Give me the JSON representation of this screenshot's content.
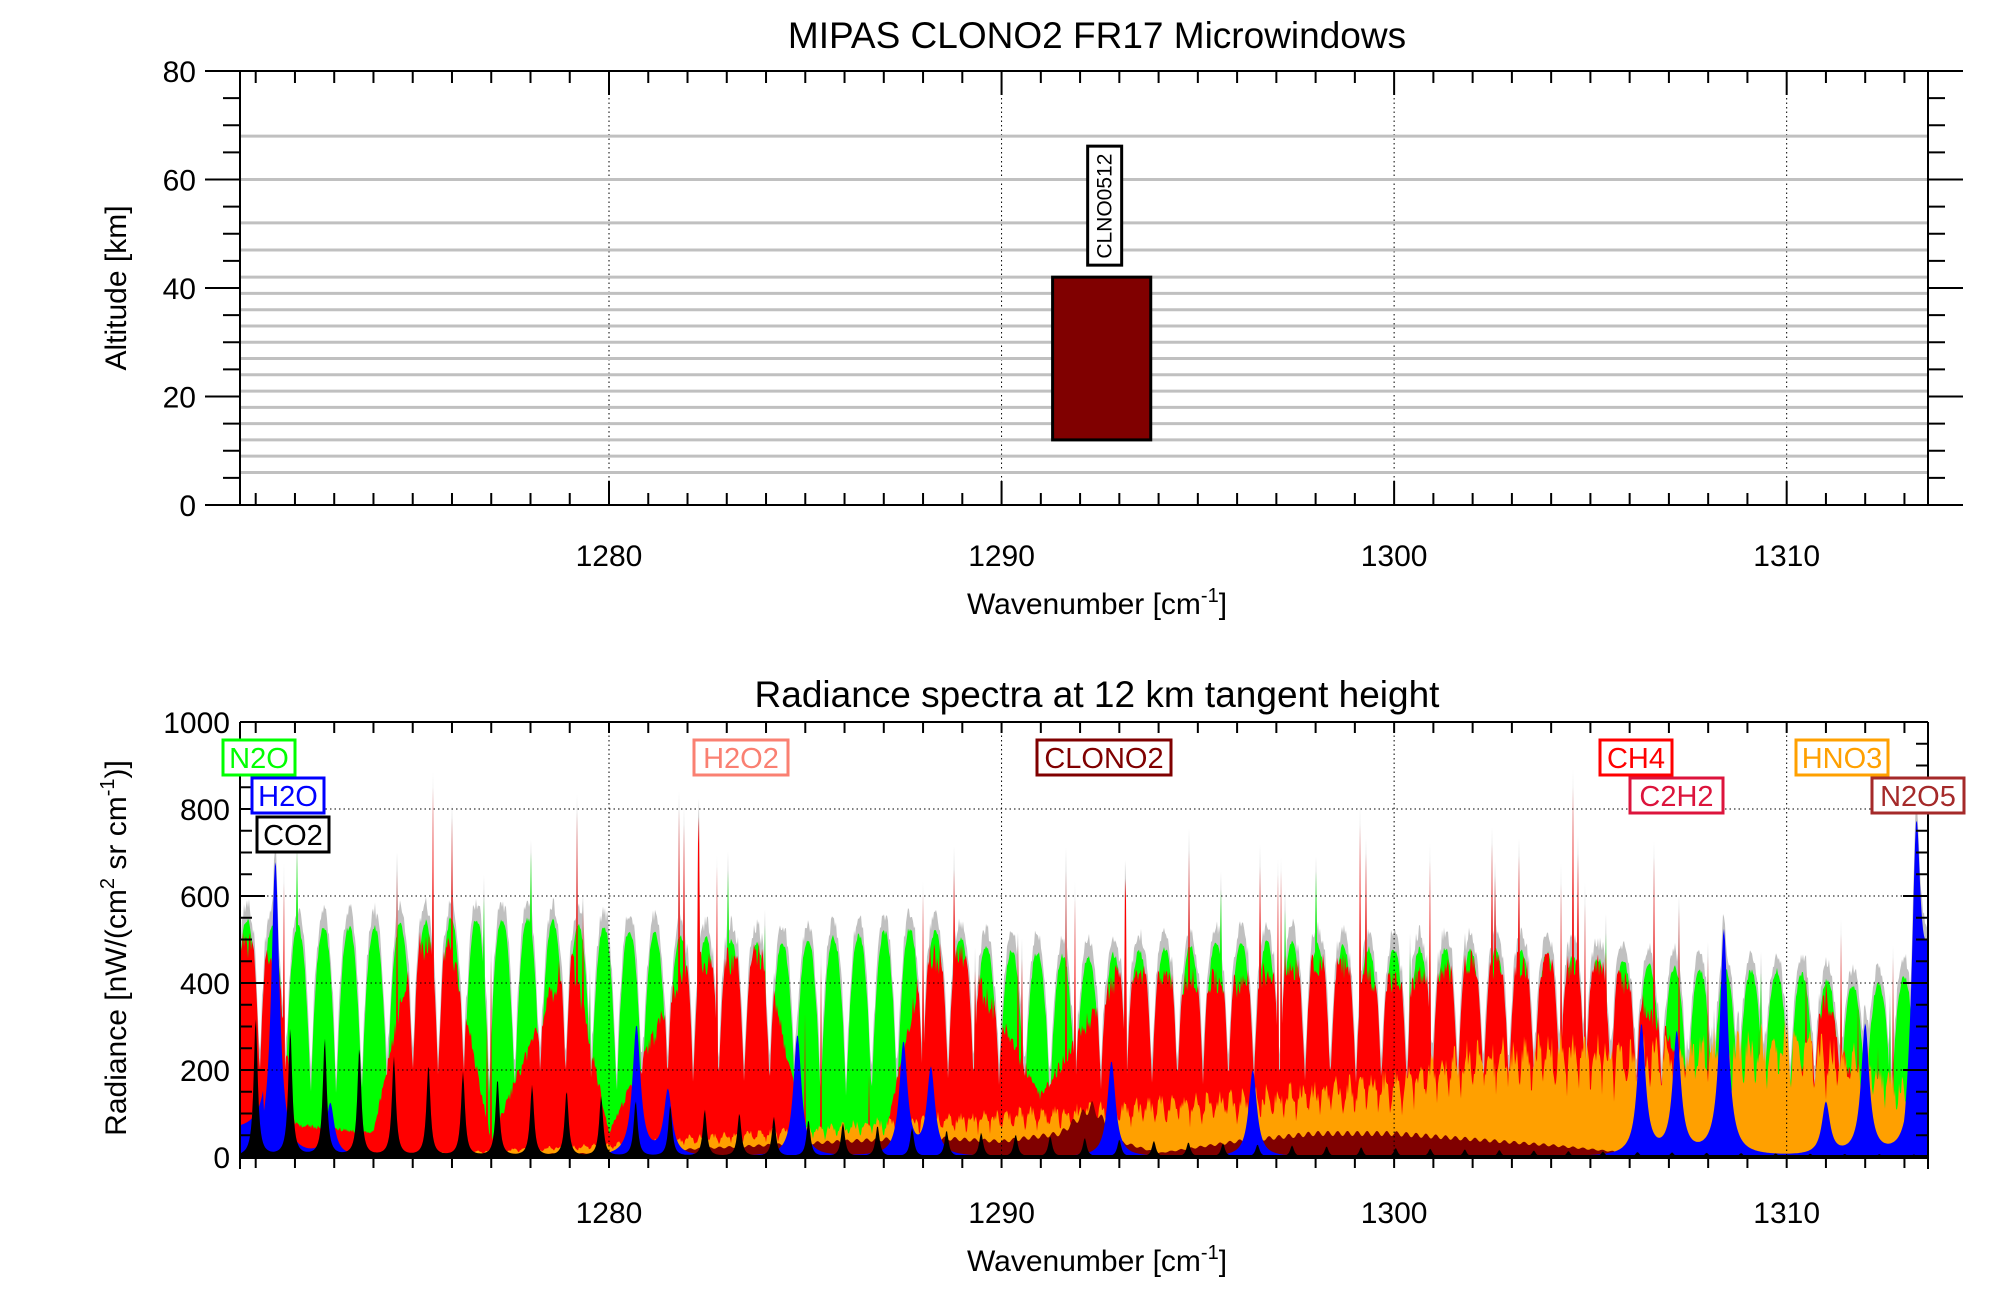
{
  "chart_data": [
    {
      "type": "bar",
      "panel": "microwindows",
      "title": "MIPAS CLONO2 FR17 Microwindows",
      "xlabel": "Wavenumber [cm",
      "xlabel_sup": "-1",
      "xlabel_end": "]",
      "ylabel": "Altitude [km]",
      "xlim": [
        1270.6,
        1313.6
      ],
      "ylim": [
        0,
        80
      ],
      "xticks": [
        1280,
        1290,
        1300,
        1310
      ],
      "xtick_labels": [
        "1280",
        "1290",
        "1300",
        "1310"
      ],
      "yticks": [
        0,
        20,
        40,
        60,
        80
      ],
      "ytick_labels": [
        "0",
        "20",
        "40",
        "60",
        "80"
      ],
      "grid": "x-dotted",
      "tangent_altitudes_km": [
        6,
        9,
        12,
        15,
        18,
        21,
        24,
        27,
        30,
        33,
        36,
        39,
        42,
        47,
        52,
        60,
        68
      ],
      "tangent_line_color": "#c0c0c0",
      "microwindows": [
        {
          "name": "CLNO0512",
          "x_start": 1291.3,
          "x_end": 1293.8,
          "alt_bottom": 12,
          "alt_top": 42,
          "color": "#800000"
        }
      ]
    },
    {
      "type": "area",
      "panel": "spectra",
      "title": "Radiance spectra at 12 km tangent height",
      "xlabel": "Wavenumber [cm",
      "xlabel_sup": "-1",
      "xlabel_end": "]",
      "ylabel_parts": [
        "Radiance [nW/(cm",
        "2",
        " sr cm",
        "-1",
        ")]"
      ],
      "xlim": [
        1270.6,
        1313.6
      ],
      "ylim": [
        0,
        1000
      ],
      "xticks": [
        1280,
        1290,
        1300,
        1310
      ],
      "xtick_labels": [
        "1280",
        "1290",
        "1300",
        "1310"
      ],
      "yticks": [
        0,
        200,
        400,
        600,
        800,
        1000
      ],
      "ytick_labels": [
        "0",
        "200",
        "400",
        "600",
        "800",
        "1000"
      ],
      "grid": "dotted",
      "total_color": "#c0c0c0",
      "series": [
        {
          "name": "N2O",
          "color": "#00ff00",
          "envelope": [
            [
              1270.6,
              540
            ],
            [
              1272,
              520
            ],
            [
              1274,
              520
            ],
            [
              1276,
              540
            ],
            [
              1278,
              540
            ],
            [
              1280,
              520
            ],
            [
              1282,
              500
            ],
            [
              1284,
              480
            ],
            [
              1286,
              500
            ],
            [
              1288,
              520
            ],
            [
              1290,
              470
            ],
            [
              1292,
              450
            ],
            [
              1294,
              470
            ],
            [
              1296,
              490
            ],
            [
              1298,
              480
            ],
            [
              1300,
              470
            ],
            [
              1302,
              470
            ],
            [
              1304,
              460
            ],
            [
              1306,
              440
            ],
            [
              1308,
              420
            ],
            [
              1310,
              420
            ],
            [
              1312,
              380
            ],
            [
              1313.6,
              420
            ]
          ],
          "line_spacing": 0.65,
          "depth": 0.75
        },
        {
          "name": "CH4",
          "color": "#ff0000",
          "envelope": [
            [
              1270.6,
              520
            ],
            [
              1271.5,
              520
            ],
            [
              1272,
              80
            ],
            [
              1274,
              60
            ],
            [
              1275,
              520
            ],
            [
              1276,
              520
            ],
            [
              1277,
              40
            ],
            [
              1279,
              520
            ],
            [
              1280,
              60
            ],
            [
              1282,
              480
            ],
            [
              1284,
              500
            ],
            [
              1285,
              40
            ],
            [
              1287,
              40
            ],
            [
              1288,
              490
            ],
            [
              1289,
              500
            ],
            [
              1290,
              330
            ],
            [
              1291,
              150
            ],
            [
              1293,
              460
            ],
            [
              1294,
              440
            ],
            [
              1296,
              430
            ],
            [
              1298,
              490
            ],
            [
              1300,
              430
            ],
            [
              1302,
              480
            ],
            [
              1304,
              470
            ],
            [
              1305.5,
              480
            ],
            [
              1307,
              300
            ],
            [
              1308,
              100
            ],
            [
              1310,
              120
            ],
            [
              1311,
              400
            ],
            [
              1312,
              80
            ],
            [
              1313.6,
              40
            ]
          ],
          "line_spacing": 0.35,
          "peak_max": 850
        },
        {
          "name": "HNO3",
          "color": "#ffa000",
          "envelope": [
            [
              1270.6,
              0
            ],
            [
              1276,
              10
            ],
            [
              1280,
              30
            ],
            [
              1284,
              60
            ],
            [
              1288,
              90
            ],
            [
              1292,
              110
            ],
            [
              1296,
              140
            ],
            [
              1300,
              180
            ],
            [
              1302,
              240
            ],
            [
              1304,
              260
            ],
            [
              1306,
              250
            ],
            [
              1308,
              260
            ],
            [
              1310,
              280
            ],
            [
              1312,
              230
            ],
            [
              1313.6,
              120
            ]
          ],
          "line_spacing": 0.3
        },
        {
          "name": "CLONO2",
          "color": "#800000",
          "envelope": [
            [
              1270.6,
              0
            ],
            [
              1280,
              10
            ],
            [
              1284,
              30
            ],
            [
              1288,
              50
            ],
            [
              1290,
              40
            ],
            [
              1291.5,
              60
            ],
            [
              1292.3,
              130
            ],
            [
              1293,
              40
            ],
            [
              1294,
              10
            ],
            [
              1296,
              40
            ],
            [
              1298,
              60
            ],
            [
              1300,
              60
            ],
            [
              1302,
              45
            ],
            [
              1304,
              30
            ],
            [
              1306,
              10
            ],
            [
              1308,
              5
            ],
            [
              1313.6,
              0
            ]
          ],
          "line_spacing": 0.25
        },
        {
          "name": "H2O",
          "color": "#0000ff",
          "lines": [
            [
              1271.5,
              680
            ],
            [
              1272.9,
              120
            ],
            [
              1280.7,
              300
            ],
            [
              1281.5,
              150
            ],
            [
              1284.8,
              280
            ],
            [
              1287.5,
              260
            ],
            [
              1288.2,
              200
            ],
            [
              1292.8,
              220
            ],
            [
              1296.4,
              200
            ],
            [
              1306.3,
              300
            ],
            [
              1307.2,
              280
            ],
            [
              1308.4,
              520
            ],
            [
              1311.0,
              120
            ],
            [
              1312.0,
              300
            ],
            [
              1313.3,
              560
            ]
          ],
          "line_width": 0.35
        },
        {
          "name": "CO2",
          "color": "#000000",
          "first_line": 1271.0,
          "line_spacing": 0.88,
          "peak_start": 320,
          "peak_decay": 0.92
        }
      ],
      "label_boxes": [
        {
          "name": "N2O",
          "color": "#00ff00",
          "row": 1
        },
        {
          "name": "H2O",
          "color": "#0000ff",
          "row": 2
        },
        {
          "name": "CO2",
          "color": "#000000",
          "row": 3
        },
        {
          "name": "H2O2",
          "color": "#fa8072",
          "row": 1
        },
        {
          "name": "CLONO2",
          "color": "#800000",
          "row": 1
        },
        {
          "name": "CH4",
          "color": "#ff0000",
          "row": 1
        },
        {
          "name": "C2H2",
          "color": "#dc143c",
          "row": 2
        },
        {
          "name": "HNO3",
          "color": "#ffa000",
          "row": 1
        },
        {
          "name": "N2O5",
          "color": "#a52a2a",
          "row": 2
        }
      ]
    }
  ]
}
